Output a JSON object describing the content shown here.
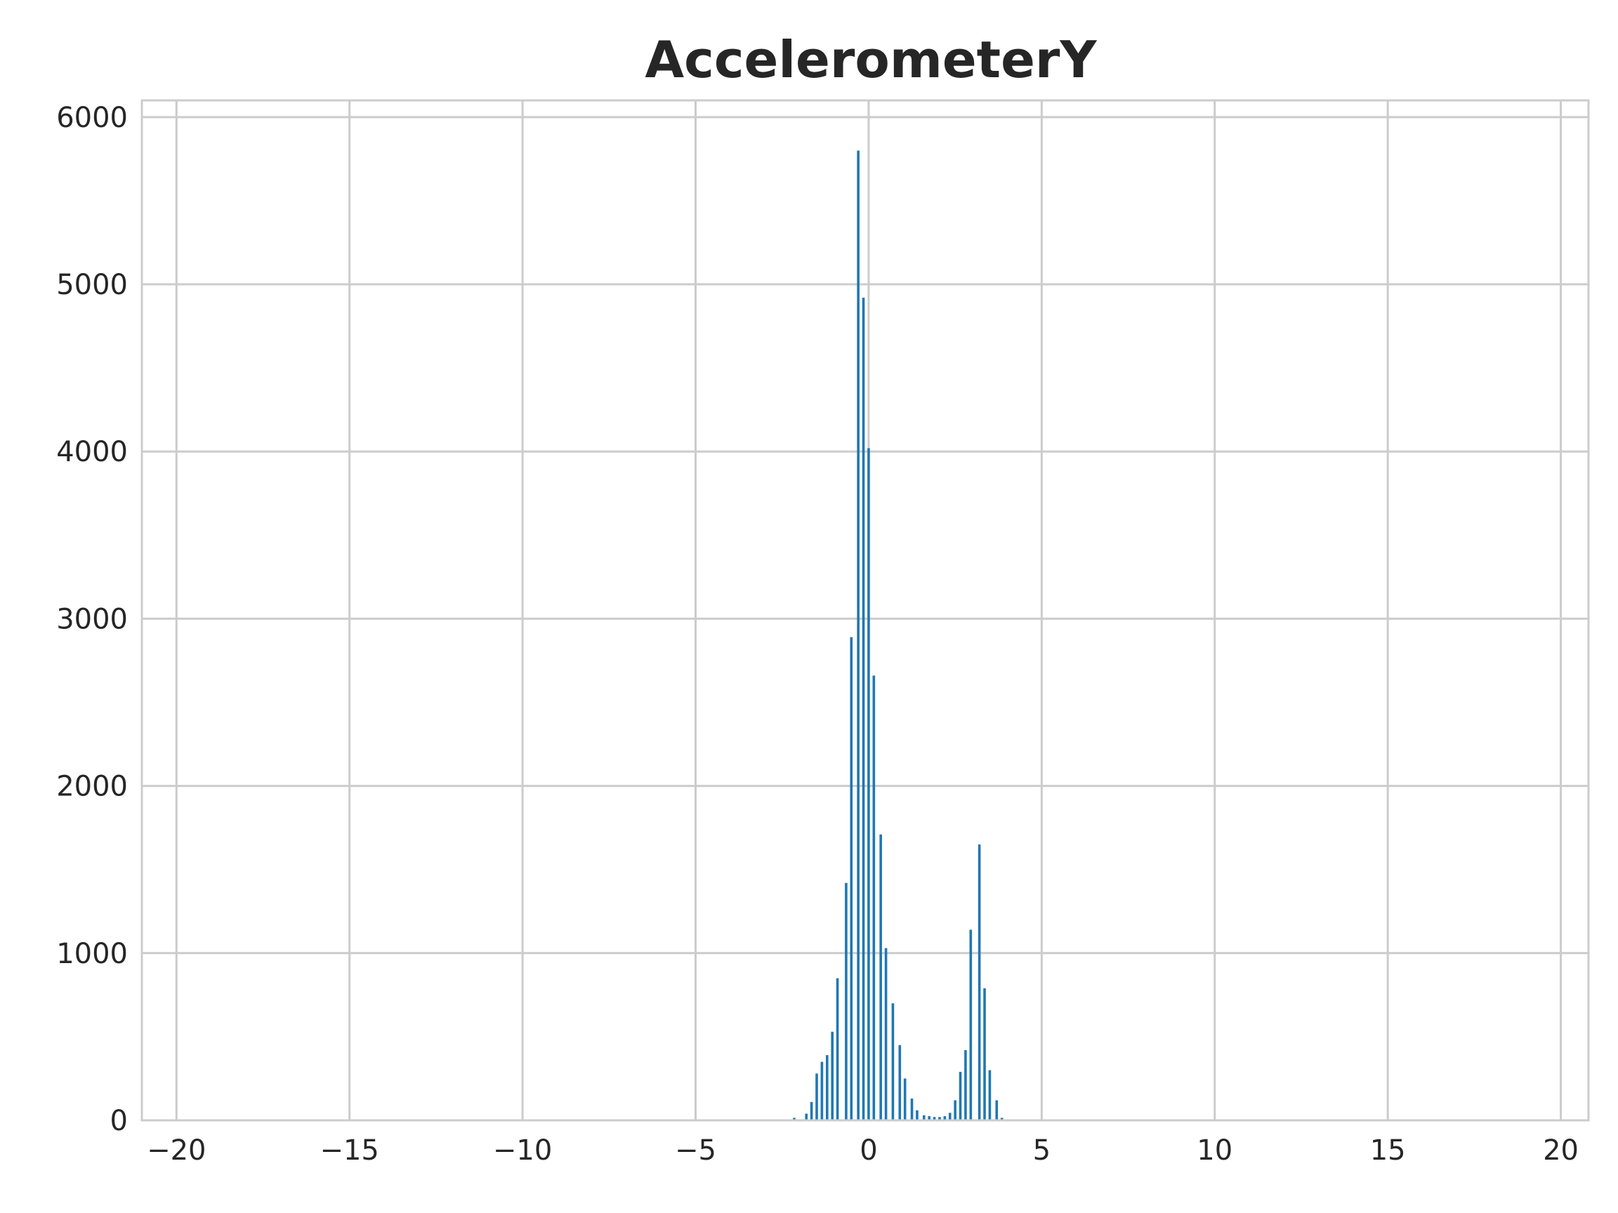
{
  "chart_data": {
    "type": "bar",
    "title": "AccelerometerY",
    "xlabel": "",
    "ylabel": "",
    "xlim": [
      -21.0,
      20.8
    ],
    "ylim": [
      0,
      6100
    ],
    "x_ticks": [
      -20,
      -15,
      -10,
      -5,
      0,
      5,
      10,
      15,
      20
    ],
    "x_tick_labels": [
      "−20",
      "−15",
      "−10",
      "−5",
      "0",
      "5",
      "10",
      "15",
      "20"
    ],
    "y_ticks": [
      0,
      1000,
      2000,
      3000,
      4000,
      5000,
      6000
    ],
    "y_tick_labels": [
      "0",
      "1000",
      "2000",
      "3000",
      "4000",
      "5000",
      "6000"
    ],
    "grid": true,
    "legend": "none",
    "bar_color": "#1f77b4",
    "series": [
      {
        "x": [
          -2.15,
          -1.8,
          -1.65,
          -1.5,
          -1.35,
          -1.2,
          -1.05,
          -0.9,
          -0.65,
          -0.5,
          -0.3,
          -0.15,
          0.0,
          0.15,
          0.35,
          0.5,
          0.7,
          0.9,
          1.05,
          1.25,
          1.4,
          1.6,
          1.75,
          1.9,
          2.05,
          2.2,
          2.35,
          2.5,
          2.65,
          2.8,
          2.95,
          3.2,
          3.35,
          3.5,
          3.7,
          3.85,
          4.0,
          4.2,
          4.35
        ],
        "values": [
          15,
          40,
          110,
          280,
          350,
          390,
          530,
          850,
          1420,
          2890,
          5800,
          4920,
          4020,
          2660,
          1710,
          1030,
          700,
          450,
          250,
          130,
          60,
          30,
          25,
          20,
          20,
          25,
          45,
          120,
          290,
          420,
          1140,
          1650,
          790,
          300,
          120,
          15,
          0,
          0,
          0
        ]
      }
    ]
  }
}
